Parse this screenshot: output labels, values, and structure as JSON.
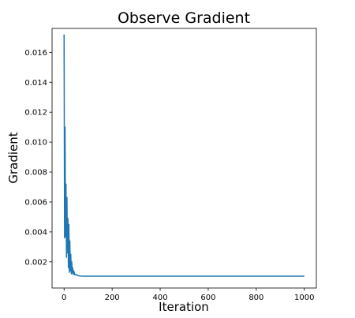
{
  "chart_data": {
    "type": "line",
    "title": "Observe Gradient",
    "xlabel": "Iteration",
    "ylabel": "Gradient",
    "xlim": [
      -50,
      1050
    ],
    "ylim": [
      0.00025,
      0.0176
    ],
    "x_ticks": [
      0,
      200,
      400,
      600,
      800,
      1000
    ],
    "x_tick_labels": [
      "0",
      "200",
      "400",
      "600",
      "800",
      "1000"
    ],
    "y_ticks": [
      0.002,
      0.004,
      0.006,
      0.008,
      0.01,
      0.012,
      0.014,
      0.016
    ],
    "y_tick_labels": [
      "0.002",
      "0.004",
      "0.006",
      "0.008",
      "0.010",
      "0.012",
      "0.014",
      "0.016"
    ],
    "grid": false,
    "series": [
      {
        "color": "#1f77b4",
        "x": [
          0,
          2,
          4,
          6,
          8,
          10,
          12,
          14,
          16,
          18,
          20,
          22,
          24,
          26,
          28,
          30,
          32,
          34,
          36,
          38,
          40,
          45,
          50,
          60,
          70,
          80,
          100,
          150,
          200,
          300,
          400,
          500,
          600,
          700,
          800,
          900,
          1000
        ],
        "y": [
          0.0172,
          0.0036,
          0.011,
          0.0037,
          0.0072,
          0.0023,
          0.0063,
          0.0026,
          0.0049,
          0.0016,
          0.0045,
          0.0013,
          0.0034,
          0.0014,
          0.0025,
          0.0012,
          0.002,
          0.00125,
          0.0016,
          0.00115,
          0.0014,
          0.00112,
          0.00115,
          0.00107,
          0.00105,
          0.00104,
          0.00104,
          0.00104,
          0.00104,
          0.00104,
          0.00104,
          0.00104,
          0.00104,
          0.00104,
          0.00104,
          0.00104,
          0.00104
        ]
      }
    ]
  }
}
